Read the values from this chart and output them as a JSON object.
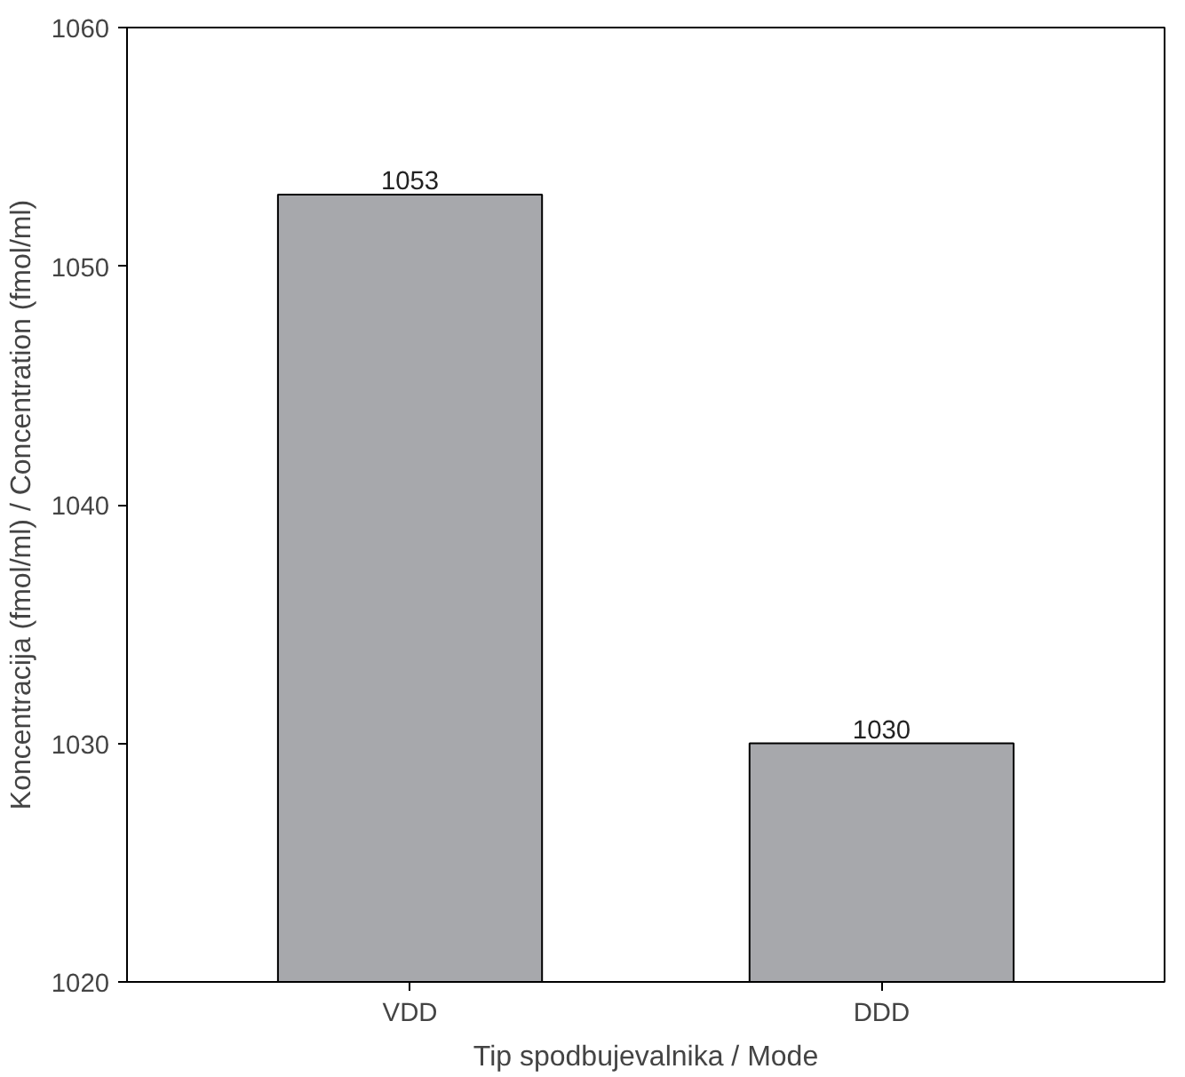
{
  "chart_data": {
    "type": "bar",
    "xlabel": "Tip spodbujevalnika / Mode",
    "ylabel": "Koncentracija (fmol/ml) / Concentration (fmol/ml)",
    "categories": [
      "VDD",
      "DDD"
    ],
    "values": [
      1053,
      1030
    ],
    "color": "#a7a8ac",
    "ylim": [
      1020,
      1060
    ],
    "yticks": [
      1020,
      1030,
      1040,
      1050,
      1060
    ],
    "grid": false,
    "data_labels": true
  }
}
